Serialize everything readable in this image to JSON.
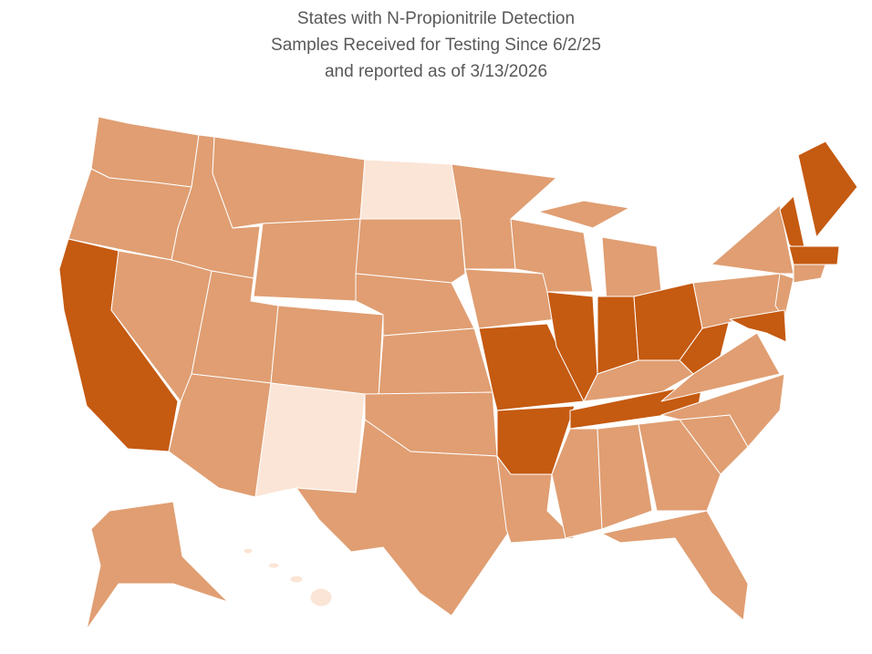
{
  "title": [
    "States with N-Propionitrile Detection",
    "Samples Received for Testing Since 6/2/25",
    "and reported as of 3/13/2026"
  ],
  "fill_colors": [
    "#c55a11",
    "#e09e72",
    "#fbe5d6"
  ]
}
